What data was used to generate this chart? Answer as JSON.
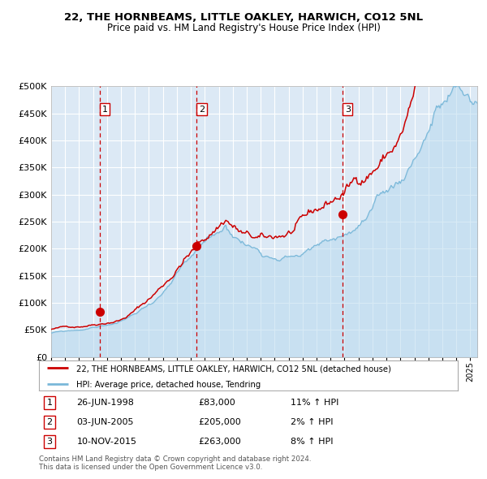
{
  "title1": "22, THE HORNBEAMS, LITTLE OAKLEY, HARWICH, CO12 5NL",
  "title2": "Price paid vs. HM Land Registry's House Price Index (HPI)",
  "bg_color": "#dce9f5",
  "red_line_color": "#cc0000",
  "blue_line_color": "#7ab8d9",
  "blue_fill_color": "#b8d9ee",
  "vline_color": "#cc0000",
  "grid_color": "#ffffff",
  "purchase_years": [
    1998.49,
    2005.42,
    2015.86
  ],
  "purchase_prices": [
    83000,
    205000,
    263000
  ],
  "purchase_labels": [
    "1",
    "2",
    "3"
  ],
  "purchase_dates_str": [
    "26-JUN-1998",
    "03-JUN-2005",
    "10-NOV-2015"
  ],
  "purchase_prices_str": [
    "£83,000",
    "£205,000",
    "£263,000"
  ],
  "purchase_hpi_str": [
    "11% ↑ HPI",
    "2% ↑ HPI",
    "8% ↑ HPI"
  ],
  "legend_line1": "22, THE HORNBEAMS, LITTLE OAKLEY, HARWICH, CO12 5NL (detached house)",
  "legend_line2": "HPI: Average price, detached house, Tendring",
  "footer1": "Contains HM Land Registry data © Crown copyright and database right 2024.",
  "footer2": "This data is licensed under the Open Government Licence v3.0.",
  "ylim": [
    0,
    500000
  ],
  "yticks": [
    0,
    50000,
    100000,
    150000,
    200000,
    250000,
    300000,
    350000,
    400000,
    450000,
    500000
  ],
  "xlim_start": 1995.0,
  "xlim_end": 2025.5
}
